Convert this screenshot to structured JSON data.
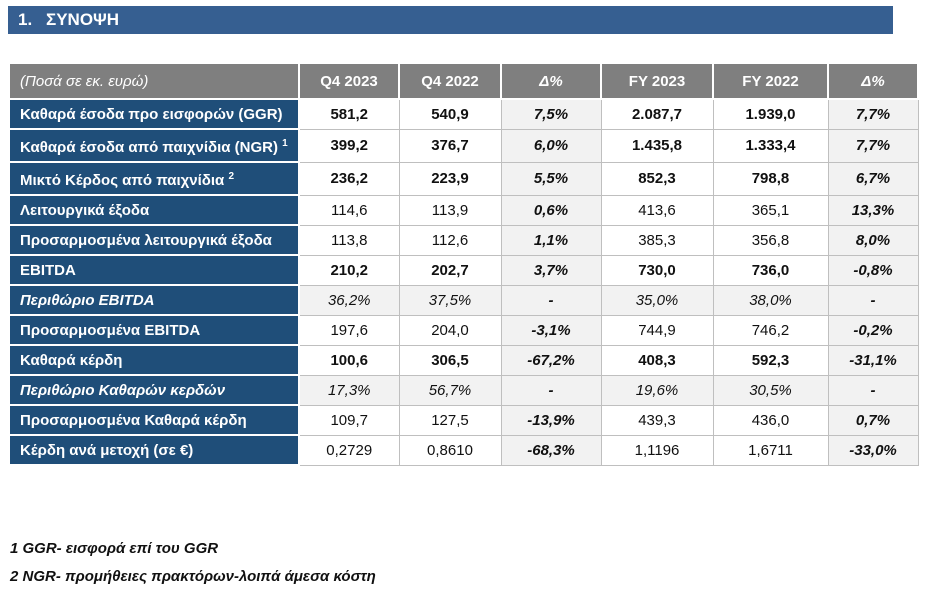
{
  "section": {
    "number": "1.",
    "title": "ΣΥΝΟΨΗ"
  },
  "table": {
    "unit_label": "(Ποσά σε εκ. ευρώ)",
    "columns": [
      "Q4 2023",
      "Q4 2022",
      "Δ%",
      "FY 2023",
      "FY 2022",
      "Δ%"
    ],
    "rows": [
      {
        "label": "Καθαρά έσοδα προ εισφορών (GGR)",
        "sup": "",
        "values": [
          "581,2",
          "540,9",
          "7,5%",
          "2.087,7",
          "1.939,0",
          "7,7%"
        ],
        "style": "bold"
      },
      {
        "label": "Καθαρά έσοδα από παιχνίδια (NGR)",
        "sup": "1",
        "values": [
          "399,2",
          "376,7",
          "6,0%",
          "1.435,8",
          "1.333,4",
          "7,7%"
        ],
        "style": "bold"
      },
      {
        "label": "Μικτό Κέρδος από παιχνίδια",
        "sup": "2",
        "values": [
          "236,2",
          "223,9",
          "5,5%",
          "852,3",
          "798,8",
          "6,7%"
        ],
        "style": "bold"
      },
      {
        "label": "Λειτουργικά έξοδα",
        "sup": "",
        "values": [
          "114,6",
          "113,9",
          "0,6%",
          "413,6",
          "365,1",
          "13,3%"
        ],
        "style": "regular"
      },
      {
        "label": "Προσαρμοσμένα λειτουργικά έξοδα",
        "sup": "",
        "values": [
          "113,8",
          "112,6",
          "1,1%",
          "385,3",
          "356,8",
          "8,0%"
        ],
        "style": "regular"
      },
      {
        "label": "EBITDA",
        "sup": "",
        "values": [
          "210,2",
          "202,7",
          "3,7%",
          "730,0",
          "736,0",
          "-0,8%"
        ],
        "style": "bold"
      },
      {
        "label": "Περιθώριο EBITDA",
        "sup": "",
        "values": [
          "36,2%",
          "37,5%",
          "-",
          "35,0%",
          "38,0%",
          "-"
        ],
        "style": "margin"
      },
      {
        "label": "Προσαρμοσμένα EBITDA",
        "sup": "",
        "values": [
          "197,6",
          "204,0",
          "-3,1%",
          "744,9",
          "746,2",
          "-0,2%"
        ],
        "style": "regular"
      },
      {
        "label": "Καθαρά κέρδη",
        "sup": "",
        "values": [
          "100,6",
          "306,5",
          "-67,2%",
          "408,3",
          "592,3",
          "-31,1%"
        ],
        "style": "bold"
      },
      {
        "label": "Περιθώριο Καθαρών κερδών",
        "sup": "",
        "values": [
          "17,3%",
          "56,7%",
          "-",
          "19,6%",
          "30,5%",
          "-"
        ],
        "style": "margin"
      },
      {
        "label": "Προσαρμοσμένα Καθαρά κέρδη",
        "sup": "",
        "values": [
          "109,7",
          "127,5",
          "-13,9%",
          "439,3",
          "436,0",
          "0,7%"
        ],
        "style": "regular"
      },
      {
        "label": "Κέρδη ανά μετοχή (σε €)",
        "sup": "",
        "values": [
          "0,2729",
          "0,8610",
          "-68,3%",
          "1,1196",
          "1,6711",
          "-33,0%"
        ],
        "style": "regular"
      }
    ]
  },
  "footnotes": [
    "1 GGR- εισφορά επί του GGR",
    "2 NGR- προμήθειες πρακτόρων-λοιπά άμεσα κόστη"
  ],
  "colors": {
    "title_bar": "#365F91",
    "label_cell": "#1F4E79",
    "header_row": "#7F7F7F",
    "shaded_cell": "#F2F2F2",
    "grid_border": "#BFBFBF"
  }
}
